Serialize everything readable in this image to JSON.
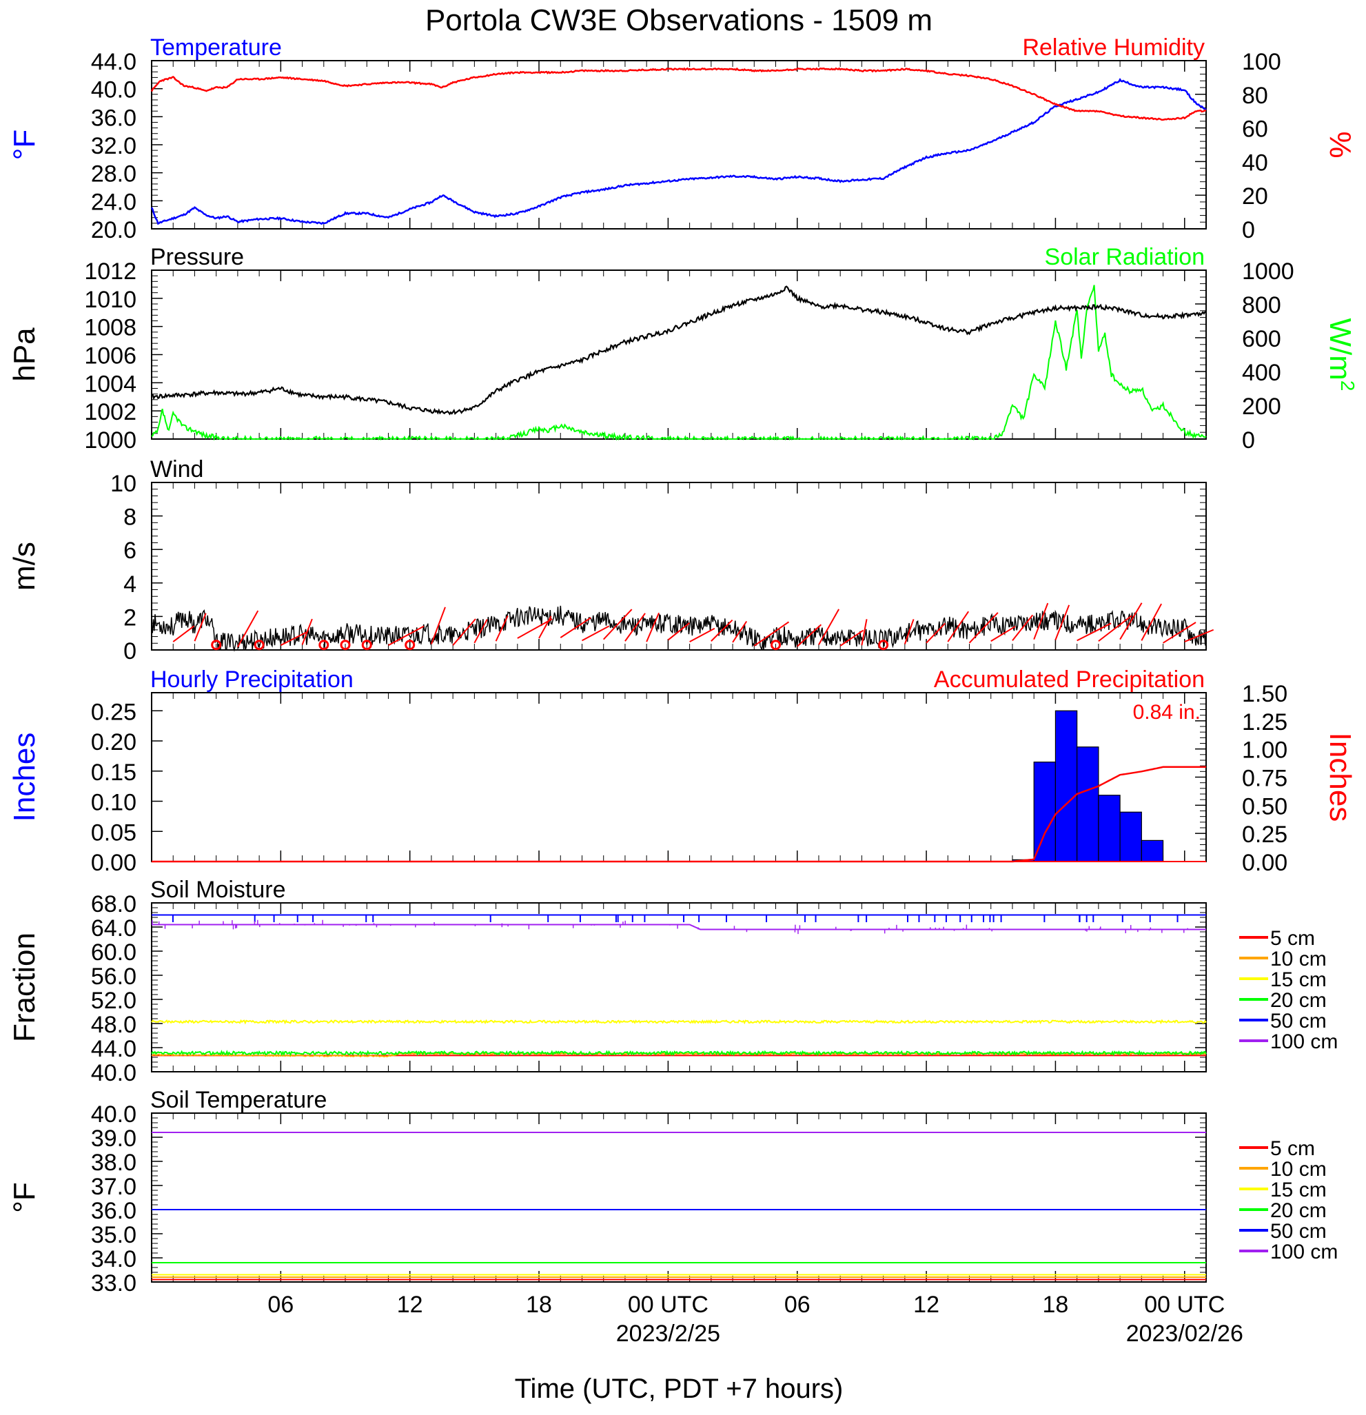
{
  "title": "Portola CW3E Observations - 1509 m",
  "x_axis": {
    "title": "Time (UTC, PDT +7 hours)",
    "ticks": [
      {
        "hour": 6,
        "label": "06",
        "sub": ""
      },
      {
        "hour": 12,
        "label": "12",
        "sub": ""
      },
      {
        "hour": 18,
        "label": "18",
        "sub": ""
      },
      {
        "hour": 24,
        "label": "00 UTC",
        "sub": "2023/2/25"
      },
      {
        "hour": 30,
        "label": "06",
        "sub": ""
      },
      {
        "hour": 36,
        "label": "12",
        "sub": ""
      },
      {
        "hour": 42,
        "label": "18",
        "sub": ""
      },
      {
        "hour": 48,
        "label": "00 UTC",
        "sub": "2023/02/26"
      }
    ]
  },
  "colors": {
    "blue": "#0000ff",
    "red": "#ff0000",
    "green": "#00ff00",
    "black": "#000000",
    "orange": "#ffa500",
    "yellow": "#ffff00",
    "purple": "#a020f0"
  },
  "chart_data": [
    {
      "type": "line",
      "panel": "temperature_humidity",
      "title_left": "Temperature",
      "title_right": "Relative Humidity",
      "ylabel_left": "°F",
      "ylabel_right": "%",
      "left_ylim": [
        20,
        44
      ],
      "left_ticks": [
        "20.0",
        "24.0",
        "28.0",
        "32.0",
        "36.0",
        "40.0",
        "44.0"
      ],
      "right_ylim": [
        0,
        100
      ],
      "right_ticks": [
        "0",
        "20",
        "40",
        "60",
        "80",
        "100"
      ],
      "series": [
        {
          "name": "Temperature",
          "axis": "left",
          "x": [
            0,
            0.3,
            1,
            1.5,
            2,
            2.5,
            3,
            3.5,
            4,
            5,
            6,
            7,
            8,
            9,
            10,
            11,
            12,
            13,
            13.5,
            14,
            15,
            16,
            17,
            18,
            19,
            20,
            21,
            22,
            24,
            25,
            26,
            27,
            28,
            29,
            30,
            31,
            32,
            33,
            34,
            35,
            36,
            37,
            38,
            39,
            40,
            41,
            42,
            43,
            44,
            45,
            46,
            47,
            48,
            48.5,
            49
          ],
          "y": [
            23,
            20.8,
            21.5,
            22,
            23,
            22,
            21.5,
            21.8,
            21,
            21.4,
            21.5,
            21,
            20.8,
            22.2,
            22.2,
            21.6,
            22.8,
            23.8,
            24.8,
            24,
            22.4,
            21.8,
            22.2,
            23.2,
            24.5,
            25.2,
            25.6,
            26.2,
            26.8,
            27.1,
            27.3,
            27.5,
            27.4,
            27.1,
            27.4,
            27.2,
            26.8,
            27,
            27.2,
            28.8,
            30.2,
            30.8,
            31.2,
            32.4,
            33.8,
            35.2,
            37.5,
            38.5,
            39.5,
            41.2,
            40.2,
            40.2,
            39.8,
            38,
            37
          ]
        },
        {
          "name": "Relative Humidity",
          "axis": "right",
          "x": [
            0,
            0.4,
            1,
            1.5,
            2,
            2.5,
            3,
            3.5,
            4,
            5,
            6,
            7,
            8,
            9,
            10,
            11,
            12,
            13,
            13.5,
            14,
            15,
            16,
            17,
            18,
            19,
            20,
            21,
            22,
            24,
            25,
            26,
            27,
            28,
            29,
            30,
            31,
            32,
            33,
            34,
            35,
            36,
            37,
            38,
            39,
            40,
            41,
            42,
            43,
            44,
            45,
            46,
            47,
            48,
            48.5,
            49
          ],
          "y": [
            82,
            88,
            90,
            85,
            84,
            82,
            84,
            84,
            89,
            89,
            90,
            89,
            88,
            85,
            86,
            87,
            87,
            86,
            84,
            87,
            90,
            92,
            93,
            93,
            93,
            94,
            94,
            94,
            95,
            95,
            95,
            95,
            94,
            94,
            95,
            95,
            95,
            94,
            94,
            95,
            94,
            92,
            91,
            89,
            85,
            80,
            74,
            70,
            70,
            67,
            66,
            65,
            66,
            70,
            70
          ]
        }
      ]
    },
    {
      "type": "line",
      "panel": "pressure_solar",
      "title_left": "Pressure",
      "title_right": "Solar Radiation",
      "ylabel_left": "hPa",
      "ylabel_right": "W/m",
      "ylabel_right_sup": "2",
      "left_ylim": [
        1000,
        1012
      ],
      "left_ticks": [
        "1000",
        "1002",
        "1004",
        "1006",
        "1008",
        "1010",
        "1012"
      ],
      "right_ylim": [
        0,
        1000
      ],
      "right_ticks": [
        "0",
        "200",
        "400",
        "600",
        "800",
        "1000"
      ],
      "series": [
        {
          "name": "Pressure",
          "axis": "left",
          "x": [
            0,
            1,
            2,
            3,
            4,
            5,
            6,
            7,
            8,
            9,
            10,
            11,
            12,
            13,
            14,
            15,
            16,
            17,
            18,
            19,
            20,
            21,
            22,
            23,
            24,
            25,
            26,
            27,
            28,
            29,
            29.5,
            30,
            31,
            32,
            33,
            34,
            35,
            36,
            37,
            38,
            39,
            40,
            41,
            42,
            43,
            44,
            45,
            46,
            47,
            48,
            49
          ],
          "y": [
            1003,
            1003.1,
            1003.2,
            1003.3,
            1003.2,
            1003.3,
            1003.6,
            1003.1,
            1003,
            1003,
            1002.8,
            1002.6,
            1002.2,
            1002,
            1001.9,
            1002.2,
            1003.4,
            1004.2,
            1004.8,
            1005.2,
            1005.6,
            1006.3,
            1006.9,
            1007.3,
            1007.7,
            1008.3,
            1008.9,
            1009.5,
            1009.9,
            1010.3,
            1010.8,
            1010,
            1009.4,
            1009.5,
            1009.2,
            1009,
            1008.7,
            1008.3,
            1007.8,
            1007.6,
            1008.2,
            1008.6,
            1009,
            1009.3,
            1009.3,
            1009.4,
            1009.2,
            1008.8,
            1008.7,
            1008.8,
            1008.9
          ]
        },
        {
          "name": "Solar Radiation",
          "axis": "right",
          "x": [
            0,
            0.3,
            0.5,
            0.8,
            1,
            1.2,
            1.5,
            2,
            2.5,
            3,
            3.5,
            16.5,
            17,
            17.5,
            18,
            18.5,
            19,
            19.5,
            20,
            21,
            22,
            23,
            24,
            25,
            36,
            39,
            39.5,
            40,
            40.5,
            41,
            41.5,
            42,
            42.5,
            43,
            43.2,
            43.5,
            43.8,
            44,
            44.3,
            44.6,
            45,
            45.5,
            46,
            46.5,
            47,
            47.5,
            48,
            48.5,
            49
          ],
          "y": [
            10,
            50,
            170,
            40,
            150,
            120,
            70,
            50,
            20,
            10,
            0,
            0,
            20,
            40,
            60,
            50,
            80,
            60,
            40,
            20,
            10,
            5,
            0,
            0,
            0,
            0,
            20,
            200,
            120,
            380,
            300,
            700,
            420,
            760,
            480,
            800,
            900,
            520,
            620,
            380,
            320,
            280,
            300,
            160,
            200,
            120,
            40,
            20,
            10
          ]
        }
      ]
    },
    {
      "type": "line",
      "panel": "wind",
      "title_left": "Wind",
      "ylabel_left": "m/s",
      "left_ylim": [
        0,
        10
      ],
      "left_ticks": [
        "0",
        "2",
        "4",
        "6",
        "8",
        "10"
      ],
      "calm_circles_x": [
        3,
        5,
        8,
        9,
        10,
        12,
        29,
        34
      ],
      "series": [
        {
          "name": "Wind speed",
          "axis": "left",
          "x": [
            0,
            1,
            1.5,
            2,
            2.5,
            2.8,
            3,
            4,
            5,
            6,
            7,
            8,
            9,
            10,
            11,
            12,
            13,
            14,
            15,
            16,
            17,
            18,
            19,
            20,
            21,
            22,
            23,
            24,
            25,
            26,
            27,
            28,
            28.5,
            29,
            30,
            31,
            32,
            33,
            34,
            35,
            36,
            37,
            38,
            39,
            40,
            41,
            42,
            43,
            44,
            45,
            46,
            47,
            48,
            48.5,
            49
          ],
          "y": [
            1.6,
            1.4,
            2,
            1.5,
            2,
            1.3,
            0.4,
            0.5,
            0.6,
            0.8,
            0.9,
            0.7,
            1,
            0.9,
            0.8,
            0.9,
            1,
            0.8,
            1.2,
            1.5,
            2,
            2,
            2.1,
            1.6,
            1.8,
            1.5,
            1.4,
            1.7,
            1.4,
            1.5,
            1.3,
            0.7,
            0.4,
            1,
            0.6,
            0.9,
            0.7,
            0.8,
            0.6,
            1,
            1.2,
            1.4,
            1.2,
            1.5,
            1.6,
            1.8,
            1.7,
            1.6,
            1.5,
            1.8,
            1.6,
            1.2,
            1.4,
            0.8,
            0.6
          ]
        }
      ]
    },
    {
      "type": "bar",
      "panel": "precipitation",
      "title_left": "Hourly Precipitation",
      "title_right": "Accumulated Precipitation",
      "annotation": "0.84 in.",
      "ylabel_left": "Inches",
      "ylabel_right": "Inches",
      "left_ylim": [
        0,
        0.28
      ],
      "left_ticks": [
        "0.00",
        "0.05",
        "0.10",
        "0.15",
        "0.20",
        "0.25"
      ],
      "right_ylim": [
        0,
        1.5
      ],
      "right_ticks": [
        "0.00",
        "0.25",
        "0.50",
        "0.75",
        "1.00",
        "1.25",
        "1.50"
      ],
      "bars_start_hour": [
        40,
        41,
        42,
        43,
        44,
        45,
        46,
        47
      ],
      "bars_value": [
        0.003,
        0.165,
        0.25,
        0.19,
        0.11,
        0.082,
        0.035,
        0
      ],
      "series": [
        {
          "name": "Accumulated Precipitation",
          "axis": "right",
          "x": [
            0,
            40,
            41,
            41.5,
            42,
            43,
            44,
            45,
            46,
            47,
            48,
            49
          ],
          "y": [
            0,
            0,
            0.02,
            0.25,
            0.42,
            0.6,
            0.67,
            0.77,
            0.8,
            0.84,
            0.84,
            0.84
          ]
        }
      ]
    },
    {
      "type": "line",
      "panel": "soil_moisture",
      "title_left": "Soil Moisture",
      "ylabel_left": "Fraction",
      "left_ylim": [
        40,
        68
      ],
      "left_ticks": [
        "40.0",
        "44.0",
        "48.0",
        "52.0",
        "56.0",
        "60.0",
        "64.0",
        "68.0"
      ],
      "series": [
        {
          "name": "5 cm",
          "color": "#ff0000",
          "x": [
            0,
            49
          ],
          "y": [
            42.7,
            42.7
          ]
        },
        {
          "name": "10 cm",
          "color": "#ffa500",
          "x": [
            0,
            11,
            11.5,
            49
          ],
          "y": [
            42.8,
            42.6,
            43,
            43
          ]
        },
        {
          "name": "15 cm",
          "color": "#ffff00",
          "x": [
            0,
            49
          ],
          "y": [
            48.3,
            48.3
          ]
        },
        {
          "name": "20 cm",
          "color": "#00ff00",
          "x": [
            0,
            49
          ],
          "y": [
            43.1,
            43.1
          ]
        },
        {
          "name": "50 cm",
          "color": "#0000ff",
          "x": [
            0,
            49
          ],
          "y": [
            66,
            66
          ]
        },
        {
          "name": "100 cm",
          "color": "#a020f0",
          "x": [
            0,
            25,
            25.5,
            49
          ],
          "y": [
            64.4,
            64.4,
            63.6,
            63.6
          ]
        }
      ]
    },
    {
      "type": "line",
      "panel": "soil_temperature",
      "title_left": "Soil Temperature",
      "ylabel_left": "°F",
      "left_ylim": [
        33,
        40
      ],
      "left_ticks": [
        "33.0",
        "34.0",
        "35.0",
        "36.0",
        "37.0",
        "38.0",
        "39.0",
        "40.0"
      ],
      "series": [
        {
          "name": "5 cm",
          "color": "#ff0000",
          "x": [
            0,
            49
          ],
          "y": [
            33.1,
            33.1
          ]
        },
        {
          "name": "10 cm",
          "color": "#ffa500",
          "x": [
            0,
            49
          ],
          "y": [
            33.2,
            33.2
          ]
        },
        {
          "name": "15 cm",
          "color": "#ffff00",
          "x": [
            0,
            49
          ],
          "y": [
            33.3,
            33.3
          ]
        },
        {
          "name": "20 cm",
          "color": "#00ff00",
          "x": [
            0,
            49
          ],
          "y": [
            33.8,
            33.8
          ]
        },
        {
          "name": "50 cm",
          "color": "#0000ff",
          "x": [
            0,
            49
          ],
          "y": [
            36,
            36
          ]
        },
        {
          "name": "100 cm",
          "color": "#a020f0",
          "x": [
            0,
            49
          ],
          "y": [
            39.2,
            39.2
          ]
        }
      ]
    }
  ],
  "legend": {
    "entries": [
      {
        "label": "5 cm",
        "color": "#ff0000"
      },
      {
        "label": "10 cm",
        "color": "#ffa500"
      },
      {
        "label": "15 cm",
        "color": "#ffff00"
      },
      {
        "label": "20 cm",
        "color": "#00ff00"
      },
      {
        "label": "50 cm",
        "color": "#0000ff"
      },
      {
        "label": "100 cm",
        "color": "#a020f0"
      }
    ]
  }
}
